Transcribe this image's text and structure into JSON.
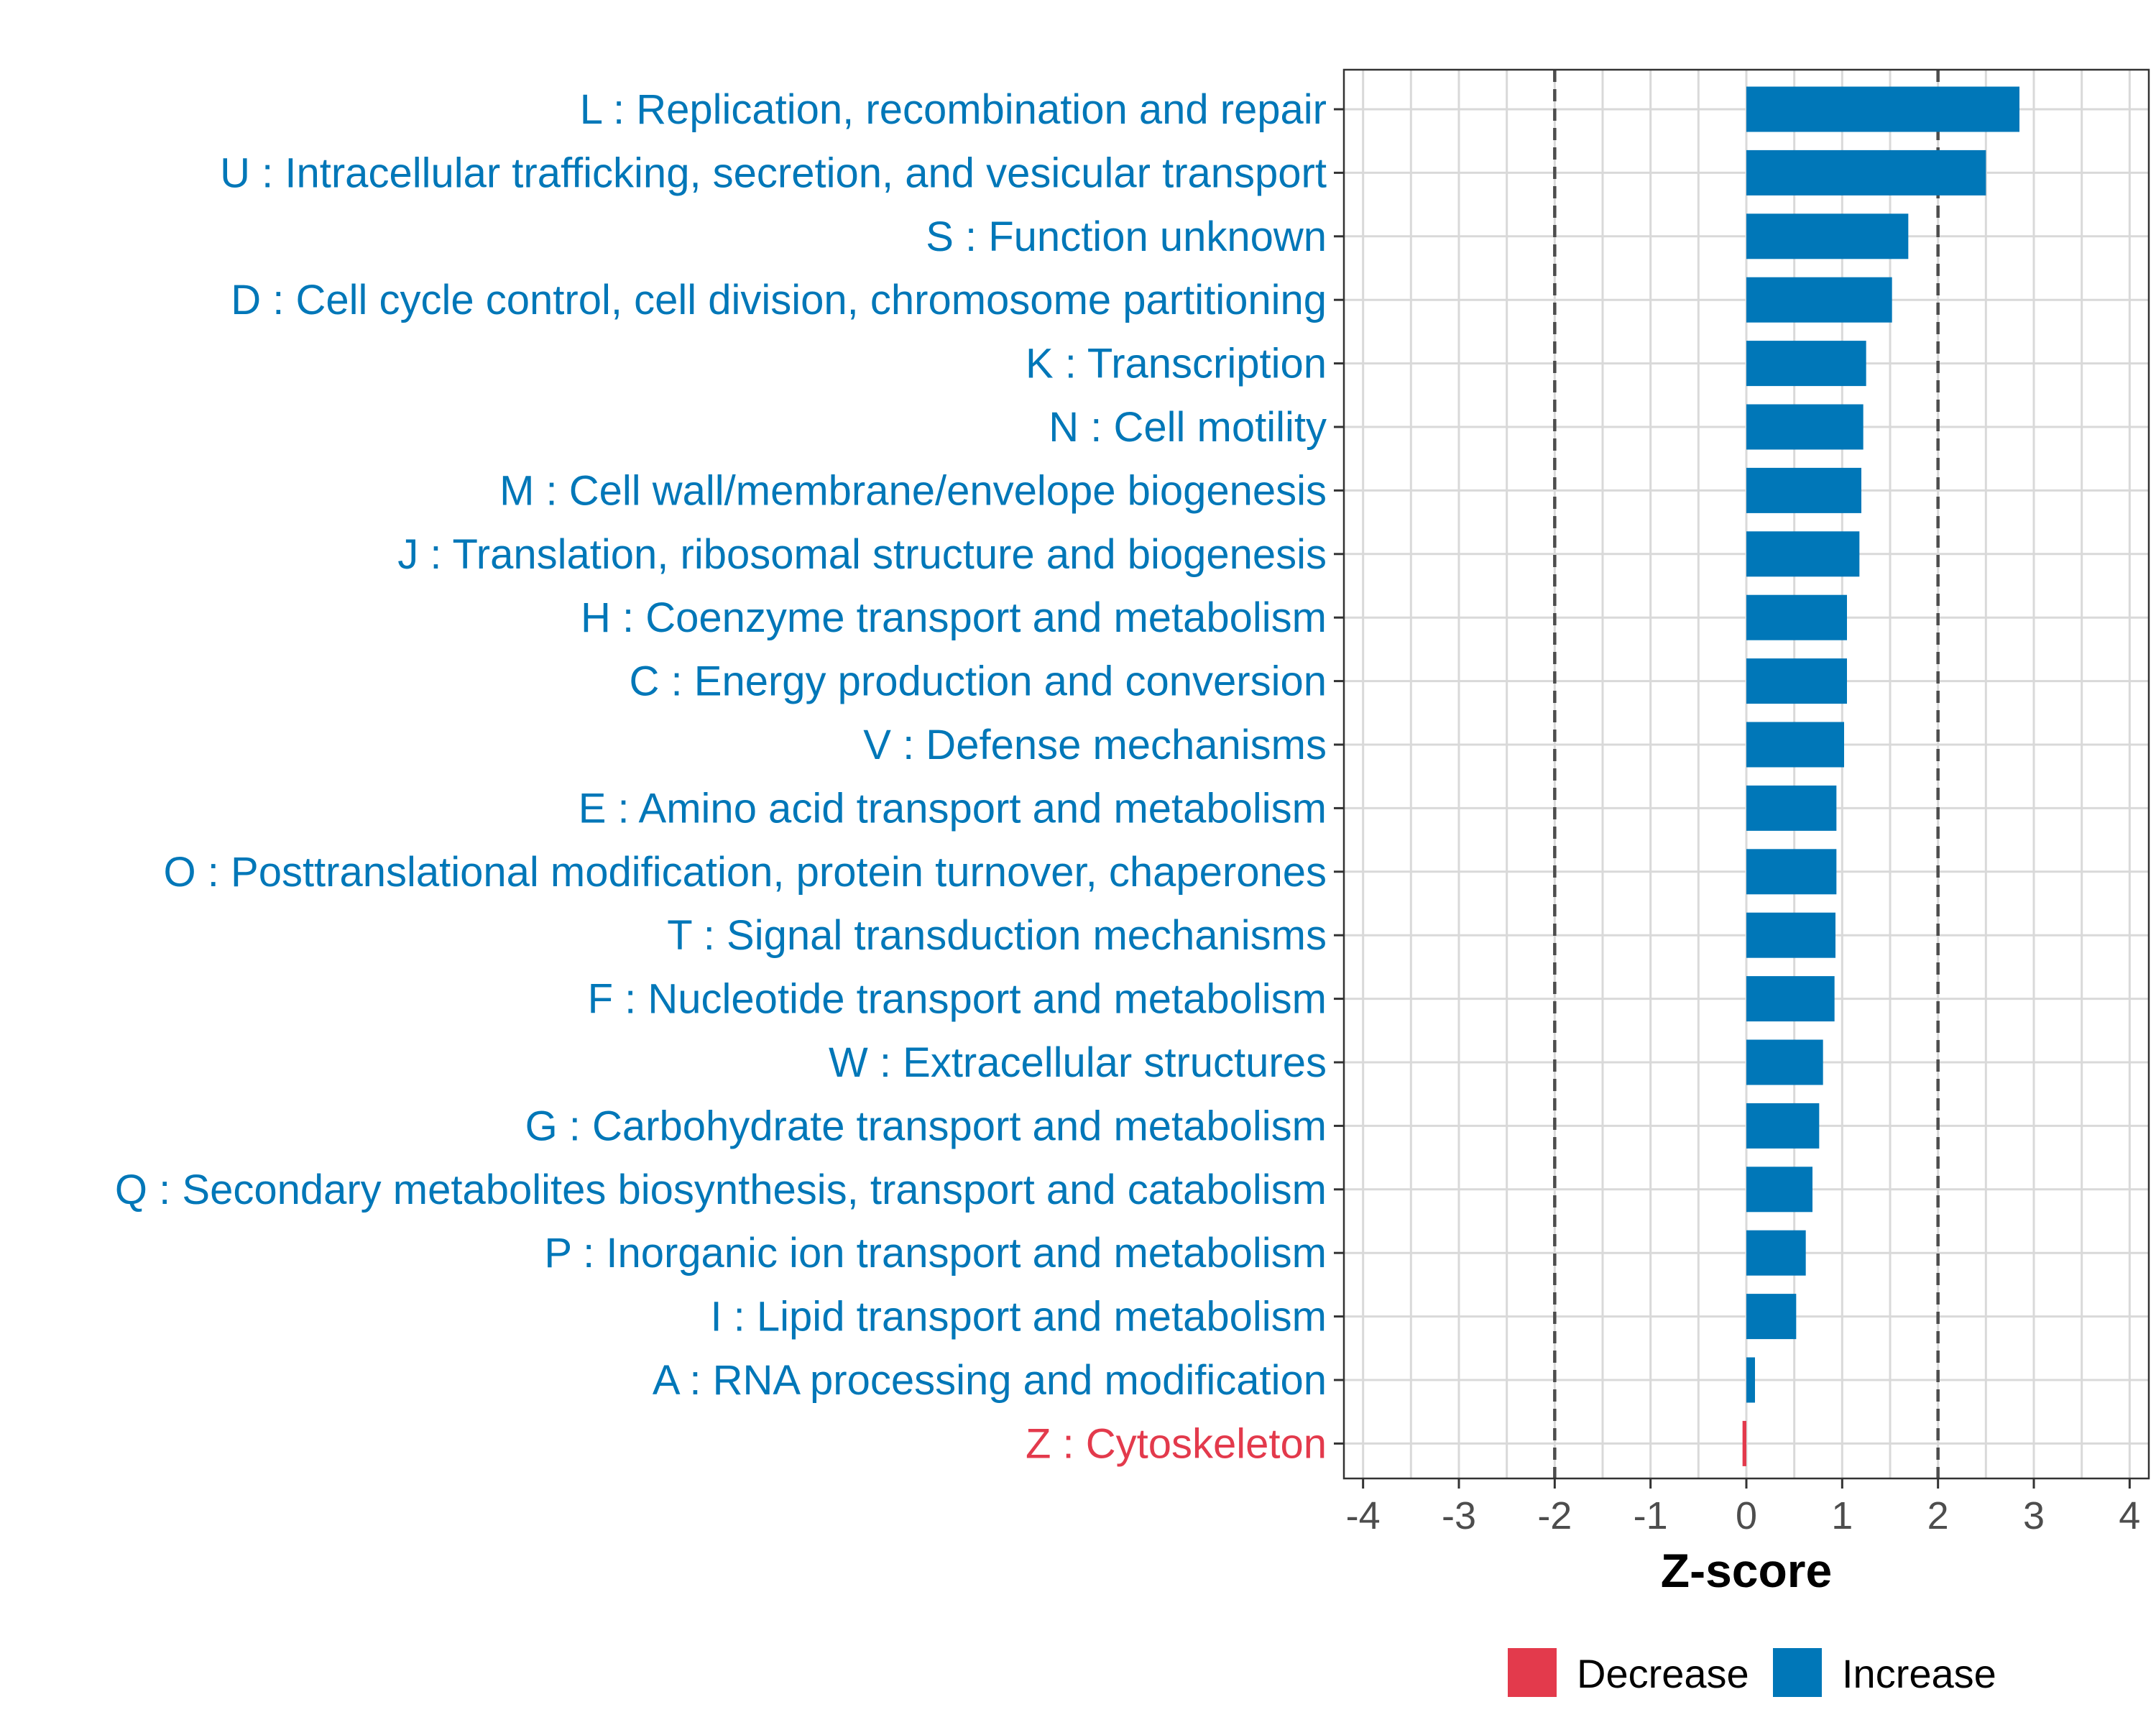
{
  "chart_data": {
    "type": "bar",
    "orientation": "horizontal",
    "title": "",
    "xlabel": "Z-score",
    "ylabel": "",
    "xlim": [
      -4.2,
      4.2
    ],
    "xticks": [
      -4,
      -3,
      -2,
      -1,
      0,
      1,
      2,
      3,
      4
    ],
    "reference_lines": [
      -2,
      2
    ],
    "grid": true,
    "categories": [
      "L : Replication, recombination and repair",
      "U : Intracellular trafficking, secretion, and vesicular transport",
      "S : Function unknown",
      "D : Cell cycle control, cell division, chromosome partitioning",
      "K : Transcription",
      "N : Cell motility",
      "M : Cell wall/membrane/envelope biogenesis",
      "J : Translation, ribosomal structure and biogenesis",
      "H : Coenzyme transport and metabolism",
      "C : Energy production and conversion",
      "V : Defense mechanisms",
      "E : Amino acid transport and metabolism",
      "O : Posttranslational modification, protein turnover, chaperones",
      "T : Signal transduction mechanisms",
      "F : Nucleotide transport and metabolism",
      "W : Extracellular structures",
      "G : Carbohydrate transport and metabolism",
      "Q : Secondary metabolites biosynthesis, transport and catabolism",
      "P : Inorganic ion transport and metabolism",
      "I : Lipid transport and metabolism",
      "A : RNA processing and modification",
      "Z : Cytoskeleton"
    ],
    "values": [
      2.85,
      2.5,
      1.69,
      1.52,
      1.25,
      1.22,
      1.2,
      1.18,
      1.05,
      1.05,
      1.02,
      0.94,
      0.94,
      0.93,
      0.92,
      0.8,
      0.76,
      0.69,
      0.62,
      0.52,
      0.09,
      -0.04
    ],
    "groups": [
      "Increase",
      "Increase",
      "Increase",
      "Increase",
      "Increase",
      "Increase",
      "Increase",
      "Increase",
      "Increase",
      "Increase",
      "Increase",
      "Increase",
      "Increase",
      "Increase",
      "Increase",
      "Increase",
      "Increase",
      "Increase",
      "Increase",
      "Increase",
      "Increase",
      "Decrease"
    ],
    "legend": {
      "position": "bottom",
      "entries": [
        {
          "label": "Decrease",
          "color": "#e33a4c"
        },
        {
          "label": "Increase",
          "color": "#0077b8"
        }
      ]
    }
  }
}
